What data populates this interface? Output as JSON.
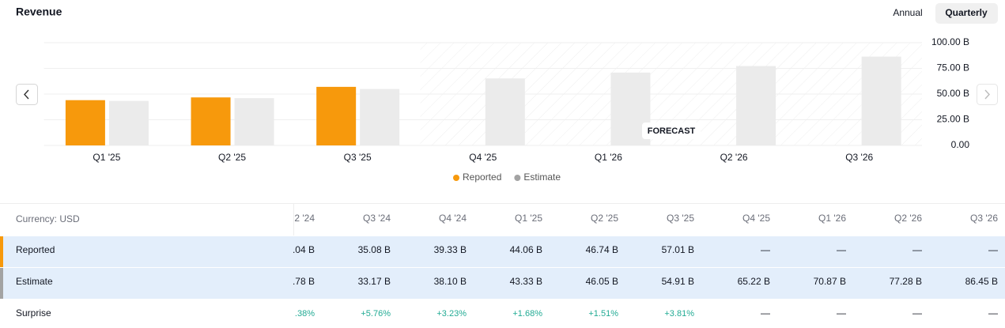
{
  "header": {
    "title": "Revenue",
    "tabs": [
      "Annual",
      "Quarterly"
    ]
  },
  "chart_data": {
    "type": "bar",
    "categories": [
      "Q1 '25",
      "Q2 '25",
      "Q3 '25",
      "Q4 '25",
      "Q1 '26",
      "Q2 '26",
      "Q3 '26"
    ],
    "series": [
      {
        "name": "Reported",
        "color": "#f7990c",
        "legend_color": "#f7990c",
        "values": [
          44.06,
          46.74,
          57.01,
          null,
          null,
          null,
          null
        ]
      },
      {
        "name": "Estimate",
        "color": "#ebebeb",
        "legend_color": "#a3a3a3",
        "values": [
          43.33,
          46.05,
          54.91,
          65.22,
          70.87,
          77.28,
          86.45
        ]
      }
    ],
    "ylim": [
      0,
      100
    ],
    "yticks": [
      {
        "value": 0,
        "label": "0.00"
      },
      {
        "value": 25,
        "label": "25.00 B"
      },
      {
        "value": 50,
        "label": "50.00 B"
      },
      {
        "value": 75,
        "label": "75.00 B"
      },
      {
        "value": 100,
        "label": "100.00 B"
      }
    ],
    "grid": true,
    "forecast_label": "FORECAST"
  },
  "table": {
    "corner": "Currency: USD",
    "columns": [
      "2 '24",
      "Q3 '24",
      "Q4 '24",
      "Q1 '25",
      "Q2 '25",
      "Q3 '25",
      "Q4 '25",
      "Q1 '26",
      "Q2 '26",
      "Q3 '26"
    ],
    "rows": [
      {
        "label": "Reported",
        "color": "#f7990c",
        "cells": [
          ".04 B",
          "35.08 B",
          "39.33 B",
          "44.06 B",
          "46.74 B",
          "57.01 B",
          "—",
          "—",
          "—",
          "—"
        ]
      },
      {
        "label": "Estimate",
        "color": "#a3a3a3",
        "cells": [
          ".78 B",
          "33.17 B",
          "38.10 B",
          "43.33 B",
          "46.05 B",
          "54.91 B",
          "65.22 B",
          "70.87 B",
          "77.28 B",
          "86.45 B"
        ]
      },
      {
        "label": "Surprise",
        "cells": [
          ".38%",
          "+5.76%",
          "+3.23%",
          "+1.68%",
          "+1.51%",
          "+3.81%",
          "—",
          "—",
          "—",
          "—"
        ]
      }
    ]
  }
}
